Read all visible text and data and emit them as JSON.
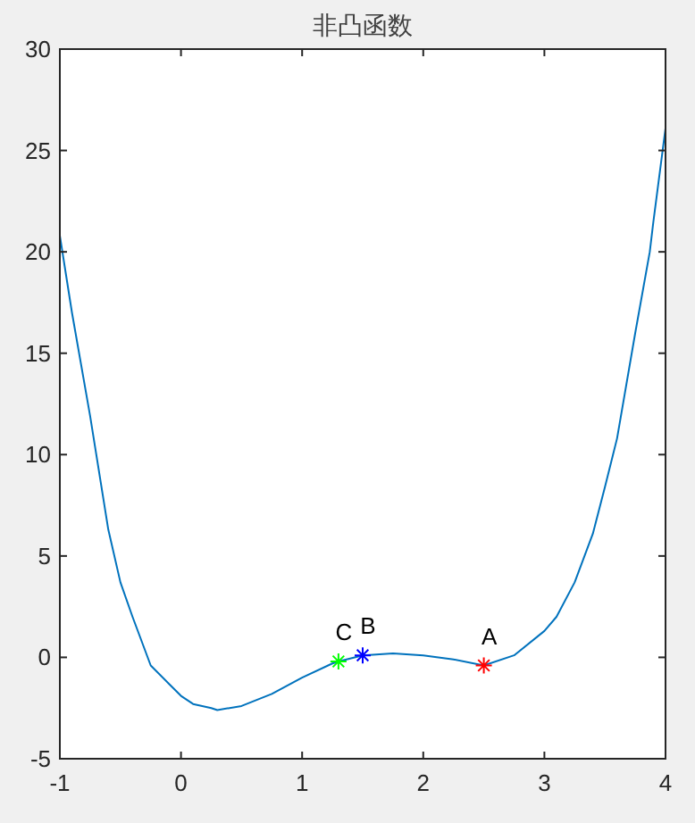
{
  "chart_data": {
    "type": "line",
    "title": "非凸函数",
    "xlim": [
      -1,
      4
    ],
    "ylim": [
      -5,
      30
    ],
    "xticks": [
      -1,
      0,
      1,
      2,
      3,
      4
    ],
    "yticks": [
      -5,
      0,
      5,
      10,
      15,
      20,
      25,
      30
    ],
    "grid": false,
    "legend": false,
    "line_style": "solid",
    "series": [
      {
        "marker": "none",
        "color": "#0072bd",
        "x": [
          -1,
          -0.9,
          -0.75,
          -0.6,
          -0.5,
          -0.4,
          -0.25,
          -0.1,
          0,
          0.1,
          0.25,
          0.3,
          0.5,
          0.75,
          1,
          1.25,
          1.3,
          1.5,
          1.75,
          2,
          2.25,
          2.5,
          2.75,
          3,
          3.1,
          3.25,
          3.4,
          3.5,
          3.6,
          3.75,
          3.87,
          3.9,
          4
        ],
        "values": [
          20.8,
          17,
          11.9,
          6.3,
          3.7,
          2.0,
          -0.4,
          -1.3,
          -1.9,
          -2.3,
          -2.5,
          -2.6,
          -2.4,
          -1.8,
          -1.0,
          -0.3,
          -0.2,
          0.1,
          0.2,
          0.1,
          -0.1,
          -0.4,
          0.1,
          1.3,
          2.0,
          3.7,
          6.1,
          8.4,
          10.8,
          16.0,
          20,
          21.5,
          26.1
        ]
      },
      {
        "type": "scatter",
        "marker": "cross",
        "color": "#ff0000",
        "x": [
          2.5
        ],
        "values": [
          -0.4
        ]
      },
      {
        "type": "scatter",
        "marker": "cross",
        "color": "#0000ff",
        "x": [
          1.5
        ],
        "values": [
          0.1
        ]
      },
      {
        "type": "scatter",
        "marker": "cross",
        "color": "#00ff00",
        "x": [
          1.3
        ],
        "values": [
          -0.2
        ]
      }
    ],
    "annotations": [
      {
        "text": "A",
        "x": 2.5,
        "y": -0.4
      },
      {
        "text": "B",
        "x": 1.5,
        "y": 0.1
      },
      {
        "text": "C",
        "x": 1.3,
        "y": -0.2
      }
    ]
  }
}
